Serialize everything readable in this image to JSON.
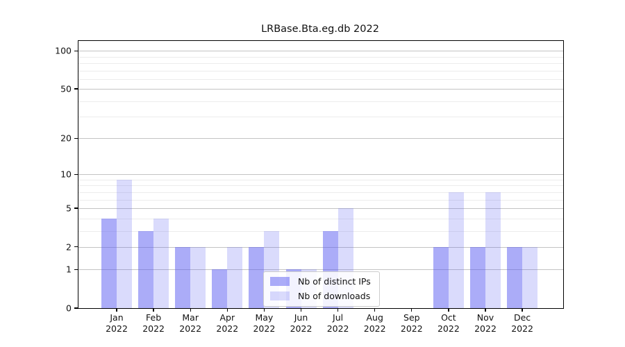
{
  "chart_data": {
    "type": "bar",
    "title": "LRBase.Bta.eg.db 2022",
    "categories": [
      "Jan",
      "Feb",
      "Mar",
      "Apr",
      "May",
      "Jun",
      "Jul",
      "Aug",
      "Sep",
      "Oct",
      "Nov",
      "Dec"
    ],
    "year": "2022",
    "series": [
      {
        "name": "Nb of distinct IPs",
        "color": "rgba(87, 90, 242, 0.5)",
        "values": [
          4,
          3,
          2,
          1,
          2,
          1,
          3,
          0,
          0,
          2,
          2,
          2
        ]
      },
      {
        "name": "Nb of downloads",
        "color": "rgba(87, 90, 242, 0.22)",
        "values": [
          9,
          4,
          2,
          2,
          3,
          1,
          5,
          0,
          0,
          7,
          7,
          2
        ]
      }
    ],
    "yticks": [
      0,
      1,
      2,
      5,
      10,
      20,
      50,
      100
    ],
    "minor_gridlines": [
      3,
      4,
      6,
      7,
      8,
      9,
      30,
      40,
      60,
      70,
      80,
      90
    ],
    "scale": "log10(1+v)",
    "ylim": [
      0,
      119
    ],
    "grid": "on",
    "legend_position": "lower-center",
    "colors": {
      "axis": "#000000",
      "major_grid": "#c3c3c3",
      "minor_grid": "#ececec",
      "text": "#111111"
    }
  }
}
